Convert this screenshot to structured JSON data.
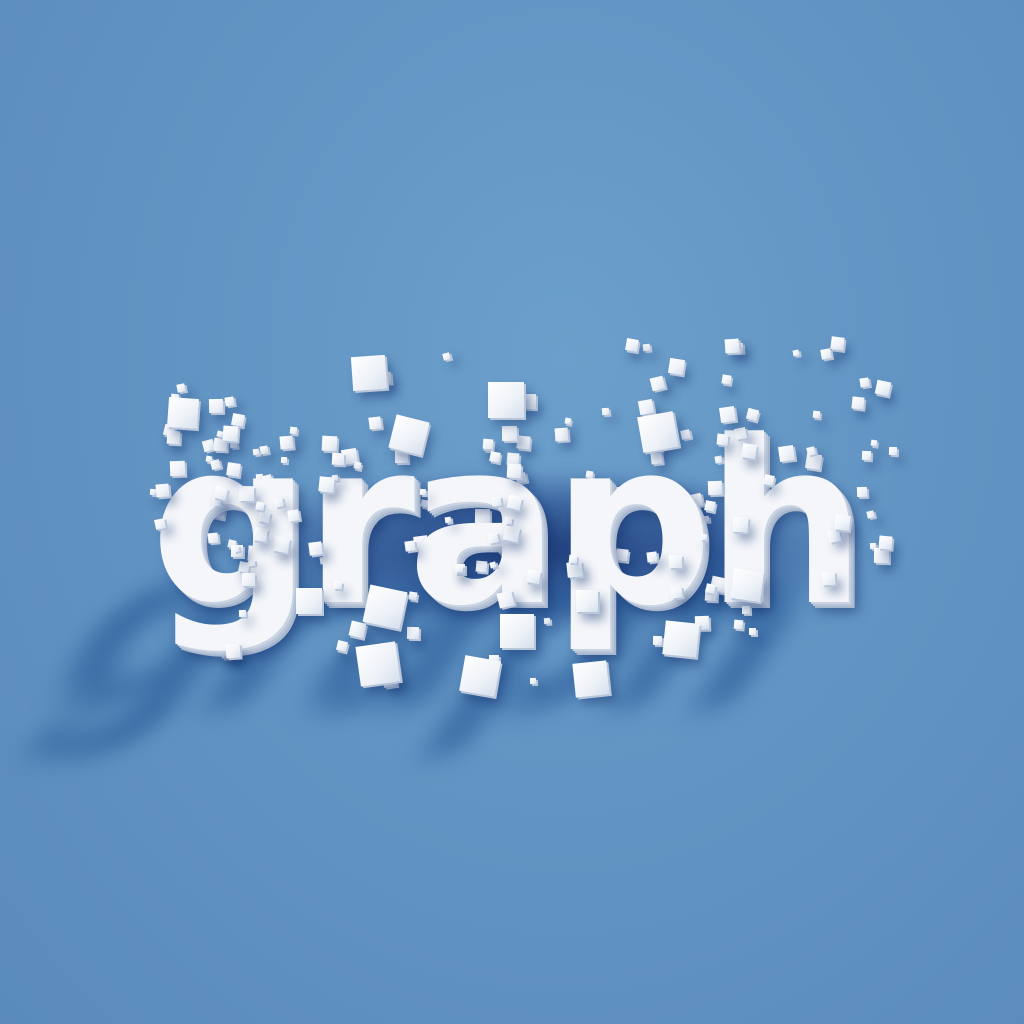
{
  "logo": {
    "word": "graph"
  },
  "colors": {
    "background": "#6395c4",
    "letters": "#f4f6fa",
    "shadow": "#1e4f8f"
  }
}
